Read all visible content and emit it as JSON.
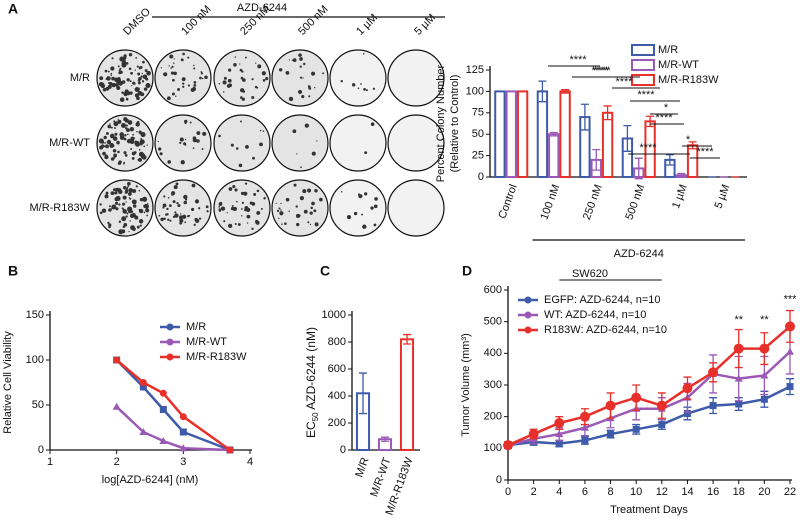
{
  "panels": [
    "A",
    "B",
    "C",
    "D"
  ],
  "plates": {
    "header": "AZD-6244",
    "columns": [
      "DMSO",
      "100 nM",
      "250 nM",
      "500 nM",
      "1 µM",
      "5 µM"
    ],
    "rows": [
      "M/R",
      "M/R-WT",
      "M/R-R183W"
    ]
  },
  "chart_data": [
    {
      "type": "bar",
      "categories": [
        "Control",
        "100 nM",
        "250 nM",
        "500 nM",
        "1 µM",
        "5 µM"
      ],
      "series": [
        {
          "name": "M/R",
          "color": "#3d5ba9",
          "values": [
            100,
            100,
            70,
            45,
            20,
            0
          ],
          "errors": [
            0,
            12,
            15,
            15,
            6,
            0
          ]
        },
        {
          "name": "M/R-WT",
          "color": "#9b59b6",
          "values": [
            100,
            50,
            20,
            10,
            2,
            0
          ],
          "errors": [
            0,
            2,
            12,
            12,
            2,
            0
          ]
        },
        {
          "name": "M/R-R183W",
          "color": "#e8302a",
          "values": [
            100,
            100,
            75,
            65,
            37,
            0
          ],
          "errors": [
            0,
            2,
            8,
            6,
            4,
            0
          ]
        }
      ],
      "ylim": [
        0,
        125
      ],
      "yticks": [
        0,
        25,
        50,
        75,
        100,
        125
      ],
      "ylabel": [
        "Percent Colony Number",
        "(Relative to Control)"
      ],
      "xlabel": "AZD-6244",
      "legend": "upper right",
      "annotations": [
        "****",
        "****",
        "****",
        "****",
        "****",
        "*",
        "****",
        "****",
        "*",
        "****"
      ]
    },
    {
      "type": "line",
      "x": [
        2,
        2.4,
        2.7,
        3,
        3.7
      ],
      "series": [
        {
          "name": "M/R",
          "color": "#3d5ba9",
          "values": [
            100,
            70,
            45,
            20,
            0
          ]
        },
        {
          "name": "M/R-WT",
          "color": "#9b59b6",
          "values": [
            48,
            20,
            10,
            2,
            0
          ]
        },
        {
          "name": "M/R-R183W",
          "color": "#e8302a",
          "values": [
            100,
            75,
            63,
            37,
            0
          ]
        }
      ],
      "xlim": [
        1,
        4
      ],
      "xticks": [
        1,
        2,
        3,
        4
      ],
      "ylim": [
        0,
        150
      ],
      "yticks": [
        0,
        50,
        100,
        150
      ],
      "xlabel": "log[AZD-6244] (nM)",
      "ylabel": [
        "Relative Cell Viability"
      ],
      "legend": "upper right"
    },
    {
      "type": "bar",
      "categories": [
        "M/R",
        "M/R-WT",
        "M/R-R183W"
      ],
      "series": [
        {
          "colors": [
            "#3d5ba9",
            "#9b59b6",
            "#e8302a"
          ],
          "values": [
            420,
            80,
            820
          ],
          "errors": [
            150,
            15,
            35
          ]
        }
      ],
      "ylim": [
        0,
        1000
      ],
      "yticks": [
        0,
        200,
        400,
        600,
        800,
        1000
      ],
      "ylabel_parts": [
        "EC",
        "50",
        " AZD-6244 (nM)"
      ]
    },
    {
      "type": "line",
      "x": [
        0,
        2,
        4,
        6,
        8,
        10,
        12,
        14,
        16,
        18,
        20,
        22
      ],
      "series": [
        {
          "name": "EGFP: AZD-6244, n=10",
          "color": "#3d5ba9",
          "values": [
            110,
            120,
            115,
            125,
            145,
            160,
            175,
            210,
            235,
            240,
            255,
            295
          ],
          "errors": [
            10,
            10,
            10,
            12,
            12,
            15,
            15,
            20,
            25,
            20,
            25,
            25
          ]
        },
        {
          "name": "WT: AZD-6244, n=10",
          "color": "#9b59b6",
          "values": [
            110,
            130,
            145,
            165,
            195,
            225,
            225,
            260,
            335,
            320,
            330,
            405
          ],
          "errors": [
            10,
            15,
            20,
            25,
            30,
            35,
            35,
            45,
            60,
            70,
            60,
            70
          ]
        },
        {
          "name": "R183W: AZD-6244, n=10",
          "color": "#e8302a",
          "values": [
            110,
            145,
            180,
            200,
            235,
            260,
            235,
            290,
            340,
            415,
            415,
            485
          ],
          "errors": [
            10,
            15,
            20,
            25,
            40,
            40,
            40,
            35,
            30,
            60,
            50,
            50
          ]
        }
      ],
      "xlim": [
        0,
        22
      ],
      "xticks": [
        0,
        2,
        4,
        6,
        8,
        10,
        12,
        14,
        16,
        18,
        20,
        22
      ],
      "ylim": [
        0,
        600
      ],
      "yticks": [
        0,
        100,
        200,
        300,
        400,
        500,
        600
      ],
      "xlabel": "Treatment Days",
      "ylabel": [
        "Tumor Volume (mm³)"
      ],
      "legend": "upper left",
      "annotations": [
        "SW620",
        "**",
        "**",
        "***"
      ]
    }
  ]
}
